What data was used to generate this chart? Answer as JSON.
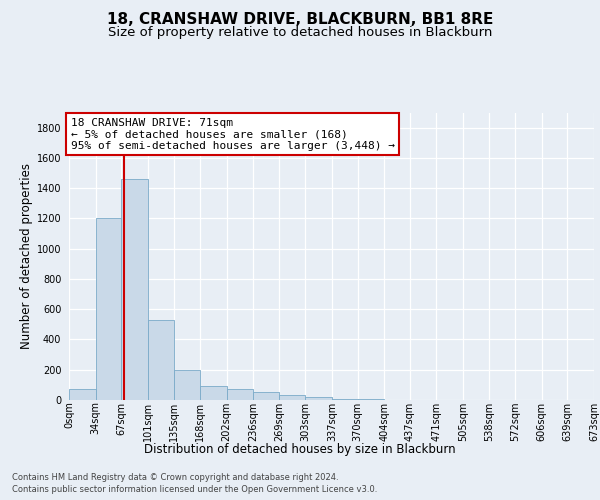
{
  "title": "18, CRANSHAW DRIVE, BLACKBURN, BB1 8RE",
  "subtitle": "Size of property relative to detached houses in Blackburn",
  "xlabel": "Distribution of detached houses by size in Blackburn",
  "ylabel": "Number of detached properties",
  "footer_line1": "Contains HM Land Registry data © Crown copyright and database right 2024.",
  "footer_line2": "Contains public sector information licensed under the Open Government Licence v3.0.",
  "annotation_line1": "18 CRANSHAW DRIVE: 71sqm",
  "annotation_line2": "← 5% of detached houses are smaller (168)",
  "annotation_line3": "95% of semi-detached houses are larger (3,448) →",
  "bar_left_edges": [
    0,
    34,
    67,
    101,
    135,
    168,
    202,
    236,
    269,
    303,
    337,
    370,
    404,
    437,
    471,
    505,
    538,
    572,
    606,
    639
  ],
  "bar_widths": [
    34,
    33,
    34,
    34,
    33,
    34,
    34,
    33,
    34,
    34,
    33,
    34,
    33,
    34,
    34,
    33,
    34,
    34,
    33,
    34
  ],
  "bar_heights": [
    75,
    1200,
    1460,
    530,
    200,
    90,
    70,
    55,
    35,
    20,
    5,
    5,
    0,
    0,
    0,
    0,
    0,
    0,
    0,
    0
  ],
  "bar_color": "#c9d9e8",
  "bar_edge_color": "#7aaac8",
  "vline_x": 71,
  "vline_color": "#cc0000",
  "ylim": [
    0,
    1900
  ],
  "yticks": [
    0,
    200,
    400,
    600,
    800,
    1000,
    1200,
    1400,
    1600,
    1800
  ],
  "xtick_labels": [
    "0sqm",
    "34sqm",
    "67sqm",
    "101sqm",
    "135sqm",
    "168sqm",
    "202sqm",
    "236sqm",
    "269sqm",
    "303sqm",
    "337sqm",
    "370sqm",
    "404sqm",
    "437sqm",
    "471sqm",
    "505sqm",
    "538sqm",
    "572sqm",
    "606sqm",
    "639sqm",
    "673sqm"
  ],
  "bg_color": "#e8eef5",
  "plot_bg_color": "#e8eef5",
  "annotation_bg": "#ffffff",
  "annotation_edge": "#cc0000",
  "title_fontsize": 11,
  "subtitle_fontsize": 9.5,
  "ylabel_fontsize": 8.5,
  "xlabel_fontsize": 8.5,
  "tick_fontsize": 7,
  "annotation_fontsize": 8,
  "footer_fontsize": 6
}
